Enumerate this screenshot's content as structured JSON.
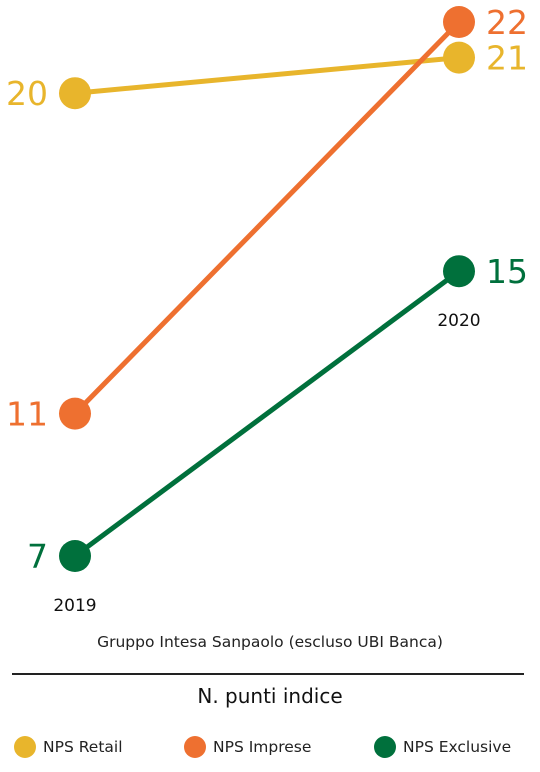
{
  "chart_data": {
    "type": "line",
    "subtitle": "Gruppo Intesa Sanpaolo (escluso UBI Banca)",
    "unit_label": "N. punti indice",
    "x": [
      "2019",
      "2020"
    ],
    "series": [
      {
        "name": "NPS Retail",
        "values": [
          20,
          21
        ],
        "color": "#E8B52C"
      },
      {
        "name": "NPS Imprese",
        "values": [
          11,
          22
        ],
        "color": "#EE7030"
      },
      {
        "name": "NPS Exclusive",
        "values": [
          7,
          15
        ],
        "color": "#00703C"
      }
    ],
    "grid": false,
    "legend_position": "bottom"
  }
}
